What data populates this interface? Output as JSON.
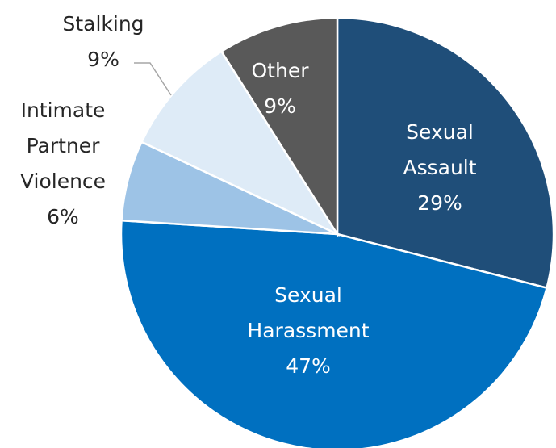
{
  "chart_data": {
    "type": "pie",
    "categories": [
      "Sexual Assault",
      "Sexual Harassment",
      "Intimate Partner Violence",
      "Stalking",
      "Other"
    ],
    "values": [
      29,
      47,
      6,
      9,
      9
    ],
    "value_labels": [
      "29%",
      "47%",
      "6%",
      "9%",
      "9%"
    ],
    "colors": [
      "#1f4e79",
      "#0070c0",
      "#9dc3e6",
      "#deebf7",
      "#595959"
    ]
  }
}
